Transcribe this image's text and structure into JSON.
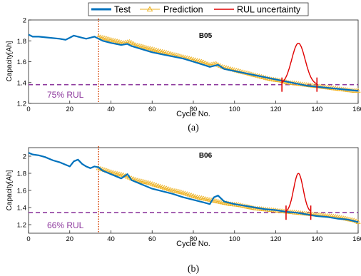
{
  "legend": {
    "placement": "top-center",
    "entries": [
      {
        "label": "Test",
        "color": "#0072BD",
        "style": "line"
      },
      {
        "label": "Prediction",
        "color": "#EDB120",
        "style": "line-triangle"
      },
      {
        "label": "RUL uncertainty",
        "color": "#E00000",
        "style": "line"
      }
    ]
  },
  "colors": {
    "test": "#0072BD",
    "prediction": "#EDB120",
    "uncertainty": "#E00000",
    "threshold": "#8E3A9E",
    "start": "#D95319"
  },
  "chart_data": [
    {
      "type": "line",
      "panel_title": "B05",
      "caption": "(a)",
      "xlabel": "Cycle No.",
      "ylabel": "Capacity[Ah]",
      "xlim": [
        0,
        160
      ],
      "ylim": [
        1.2,
        2.0
      ],
      "xticks": [
        0,
        20,
        40,
        60,
        80,
        100,
        120,
        140,
        160
      ],
      "yticks": [
        1.2,
        1.4,
        1.6,
        1.8,
        2.0
      ],
      "ytick_labels": [
        "1.2",
        "1.4",
        "1.6",
        "1.8",
        "2"
      ],
      "grid": false,
      "threshold": {
        "y": 1.38,
        "label": "75% RUL"
      },
      "prediction_start_x": 34,
      "series": [
        {
          "name": "Test",
          "x": [
            0,
            2,
            5,
            10,
            15,
            18,
            20,
            22,
            24,
            26,
            28,
            30,
            32,
            34,
            36,
            40,
            45,
            48,
            50,
            55,
            60,
            65,
            70,
            75,
            80,
            85,
            88,
            90,
            92,
            95,
            100,
            105,
            110,
            115,
            120,
            125,
            130,
            135,
            140,
            145,
            150,
            155,
            160
          ],
          "y": [
            1.86,
            1.84,
            1.84,
            1.83,
            1.82,
            1.81,
            1.83,
            1.85,
            1.84,
            1.83,
            1.82,
            1.83,
            1.84,
            1.82,
            1.8,
            1.78,
            1.76,
            1.77,
            1.75,
            1.72,
            1.69,
            1.67,
            1.65,
            1.63,
            1.6,
            1.57,
            1.55,
            1.56,
            1.57,
            1.53,
            1.51,
            1.49,
            1.47,
            1.45,
            1.43,
            1.41,
            1.39,
            1.37,
            1.36,
            1.35,
            1.34,
            1.33,
            1.32
          ]
        },
        {
          "name": "Prediction",
          "x": [
            34,
            38,
            42,
            46,
            49,
            52,
            56,
            60,
            64,
            68,
            72,
            76,
            80,
            84,
            88,
            91,
            94,
            98,
            102,
            106,
            110,
            114,
            118,
            122,
            126,
            130,
            134,
            138,
            142,
            146,
            150,
            154,
            158,
            160
          ],
          "y": [
            1.84,
            1.82,
            1.8,
            1.78,
            1.79,
            1.76,
            1.74,
            1.72,
            1.7,
            1.68,
            1.66,
            1.64,
            1.62,
            1.6,
            1.57,
            1.58,
            1.55,
            1.53,
            1.51,
            1.49,
            1.47,
            1.45,
            1.43,
            1.42,
            1.4,
            1.39,
            1.38,
            1.37,
            1.36,
            1.35,
            1.34,
            1.33,
            1.32,
            1.32
          ]
        }
      ],
      "rul_uncertainty": {
        "x_min": 123,
        "x_max": 140,
        "peak_x": 131
      }
    },
    {
      "type": "line",
      "panel_title": "B06",
      "caption": "(b)",
      "xlabel": "Cycle No.",
      "ylabel": "Capacity[Ah]",
      "xlim": [
        0,
        160
      ],
      "ylim": [
        1.1,
        2.1
      ],
      "xticks": [
        0,
        20,
        40,
        60,
        80,
        100,
        120,
        140,
        160
      ],
      "yticks": [
        1.2,
        1.4,
        1.6,
        1.8,
        2.0
      ],
      "ytick_labels": [
        "1.2",
        "1.4",
        "1.6",
        "1.8",
        "2"
      ],
      "grid": false,
      "threshold": {
        "y": 1.34,
        "label": "66% RUL"
      },
      "prediction_start_x": 34,
      "series": [
        {
          "name": "Test",
          "x": [
            0,
            2,
            5,
            8,
            10,
            12,
            15,
            18,
            20,
            22,
            24,
            26,
            28,
            30,
            32,
            34,
            36,
            40,
            45,
            48,
            50,
            55,
            60,
            65,
            70,
            75,
            80,
            85,
            88,
            90,
            92,
            95,
            100,
            105,
            110,
            115,
            120,
            125,
            130,
            135,
            140,
            145,
            150,
            155,
            160
          ],
          "y": [
            2.04,
            2.02,
            2.01,
            1.99,
            1.97,
            1.95,
            1.93,
            1.9,
            1.88,
            1.94,
            1.96,
            1.91,
            1.88,
            1.86,
            1.88,
            1.87,
            1.83,
            1.79,
            1.74,
            1.79,
            1.72,
            1.67,
            1.62,
            1.59,
            1.56,
            1.52,
            1.49,
            1.46,
            1.44,
            1.52,
            1.54,
            1.47,
            1.44,
            1.42,
            1.4,
            1.38,
            1.37,
            1.35,
            1.34,
            1.32,
            1.3,
            1.29,
            1.27,
            1.26,
            1.23
          ]
        },
        {
          "name": "Prediction",
          "x": [
            34,
            38,
            42,
            46,
            50,
            54,
            58,
            62,
            66,
            70,
            74,
            78,
            82,
            86,
            90,
            94,
            98,
            102,
            106,
            110,
            114,
            118,
            122,
            126,
            130,
            134,
            138,
            142,
            146,
            150,
            154,
            158,
            160
          ],
          "y": [
            1.86,
            1.83,
            1.8,
            1.78,
            1.74,
            1.71,
            1.69,
            1.66,
            1.63,
            1.6,
            1.58,
            1.55,
            1.52,
            1.5,
            1.48,
            1.46,
            1.44,
            1.43,
            1.41,
            1.39,
            1.38,
            1.37,
            1.36,
            1.35,
            1.34,
            1.33,
            1.32,
            1.31,
            1.3,
            1.29,
            1.27,
            1.25,
            1.23
          ]
        }
      ],
      "rul_uncertainty": {
        "x_min": 125,
        "x_max": 137,
        "peak_x": 131
      }
    }
  ]
}
